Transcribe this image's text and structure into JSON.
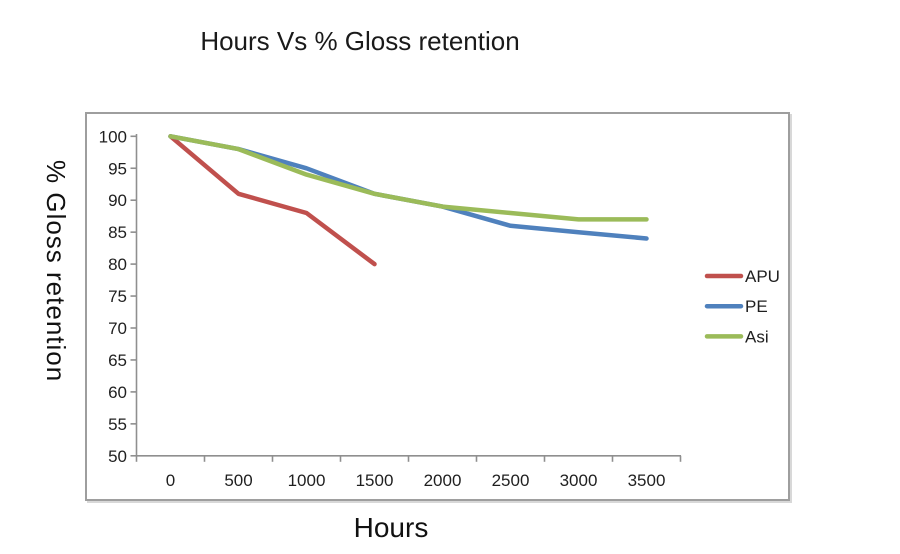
{
  "chart": {
    "title": "Hours Vs % Gloss retention",
    "x_axis_label": "Hours",
    "y_axis_label": "% Gloss retention"
  },
  "chart_data": {
    "type": "line",
    "title": "Hours Vs % Gloss retention",
    "xlabel": "Hours",
    "ylabel": "% Gloss retention",
    "x": [
      0,
      500,
      1000,
      1500,
      2000,
      2500,
      3000,
      3500
    ],
    "x_tick_labels": [
      "0",
      "500",
      "1000",
      "1500",
      "2000",
      "2500",
      "3000",
      "3500"
    ],
    "series": [
      {
        "name": "APU",
        "color": "#C0504D",
        "values": [
          100,
          91,
          88,
          80,
          null,
          null,
          null,
          null
        ]
      },
      {
        "name": "PE",
        "color": "#4F81BD",
        "values": [
          100,
          98,
          95,
          91,
          89,
          86,
          85,
          84
        ]
      },
      {
        "name": "Asi",
        "color": "#9BBB59",
        "values": [
          100,
          98,
          94,
          91,
          89,
          88,
          87,
          87
        ]
      }
    ],
    "ylim": [
      50,
      100
    ],
    "ytick_step": 5,
    "y_tick_labels": [
      "50",
      "55",
      "60",
      "65",
      "70",
      "75",
      "80",
      "85",
      "90",
      "95",
      "100"
    ],
    "grid": false,
    "legend_position": "right",
    "legend": [
      "APU",
      "PE",
      "Asi"
    ],
    "axis_color": "#8f8f8f",
    "tick_label_color": "#1f1f1f"
  }
}
